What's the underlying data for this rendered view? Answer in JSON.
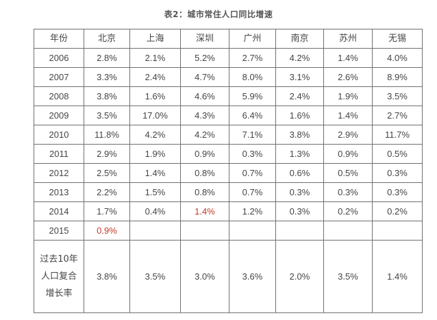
{
  "caption": "表2：城市常住人口同比增速",
  "headers": [
    "年份",
    "北京",
    "上海",
    "深圳",
    "广州",
    "南京",
    "苏州",
    "无锡"
  ],
  "rows": [
    {
      "year": "2006",
      "values": [
        "2.8%",
        "2.1%",
        "5.2%",
        "2.7%",
        "4.2%",
        "1.4%",
        "4.0%"
      ]
    },
    {
      "year": "2007",
      "values": [
        "3.3%",
        "2.4%",
        "4.7%",
        "8.0%",
        "3.1%",
        "2.6%",
        "8.9%"
      ]
    },
    {
      "year": "2008",
      "values": [
        "3.8%",
        "1.6%",
        "4.6%",
        "5.9%",
        "2.4%",
        "1.9%",
        "3.5%"
      ]
    },
    {
      "year": "2009",
      "values": [
        "3.5%",
        "17.0%",
        "4.3%",
        "6.4%",
        "1.6%",
        "1.4%",
        "2.7%"
      ]
    },
    {
      "year": "2010",
      "values": [
        "11.8%",
        "4.2%",
        "4.2%",
        "7.1%",
        "3.8%",
        "2.9%",
        "11.7%"
      ]
    },
    {
      "year": "2011",
      "values": [
        "2.9%",
        "1.9%",
        "0.9%",
        "0.3%",
        "1.3%",
        "0.9%",
        "0.5%"
      ]
    },
    {
      "year": "2012",
      "values": [
        "2.5%",
        "1.4%",
        "0.8%",
        "0.7%",
        "0.6%",
        "0.5%",
        "0.3%"
      ]
    },
    {
      "year": "2013",
      "values": [
        "2.2%",
        "1.5%",
        "0.8%",
        "0.7%",
        "0.3%",
        "0.3%",
        "0.3%"
      ]
    },
    {
      "year": "2014",
      "values": [
        "1.7%",
        "0.4%",
        "1.4%",
        "1.2%",
        "0.3%",
        "0.2%",
        "0.2%"
      ]
    },
    {
      "year": "2015",
      "values": [
        "0.9%",
        "",
        "",
        "",
        "",
        "",
        ""
      ]
    }
  ],
  "summary": {
    "label_lines": [
      "过去10年",
      "人口复合",
      "增长率"
    ],
    "values": [
      "3.8%",
      "3.5%",
      "3.0%",
      "3.6%",
      "2.0%",
      "3.5%",
      "1.4%"
    ]
  },
  "highlight_colors": {
    "red": "#c0392b"
  }
}
